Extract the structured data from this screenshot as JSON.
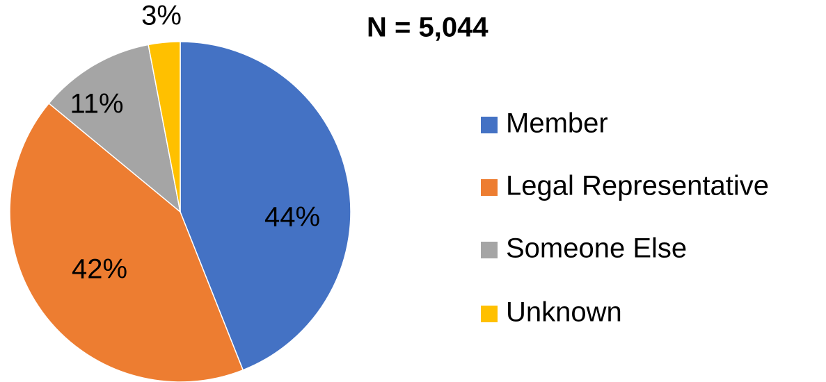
{
  "chart_data": {
    "type": "pie",
    "subtitle": "N = 5,044",
    "categories": [
      "Member",
      "Legal Representative",
      "Someone Else",
      "Unknown"
    ],
    "values": [
      44,
      42,
      11,
      3
    ],
    "value_labels": [
      "44%",
      "42%",
      "11%",
      "3%"
    ],
    "colors": [
      "#4472c4",
      "#ed7d31",
      "#a5a5a5",
      "#ffc000"
    ],
    "legend": "right"
  }
}
